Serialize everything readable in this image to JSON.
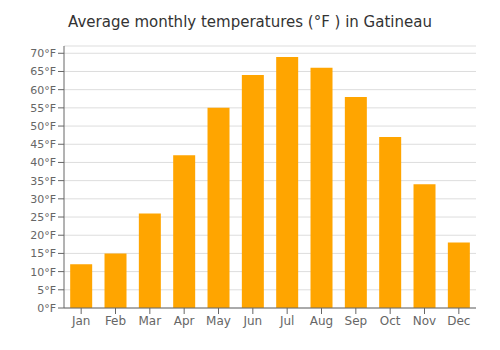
{
  "chart_data": {
    "type": "bar",
    "title": "Average monthly temperatures (°F ) in Gatineau",
    "categories": [
      "Jan",
      "Feb",
      "Mar",
      "Apr",
      "May",
      "Jun",
      "Jul",
      "Aug",
      "Sep",
      "Oct",
      "Nov",
      "Dec"
    ],
    "values": [
      12,
      15,
      26,
      42,
      55,
      64,
      69,
      66,
      58,
      47,
      34,
      18
    ],
    "color": "#FFA500",
    "ylim": [
      0,
      72
    ],
    "yticks": [
      {
        "value": 0,
        "label": "0°F"
      },
      {
        "value": 5,
        "label": "5°F"
      },
      {
        "value": 10,
        "label": "10°F"
      },
      {
        "value": 15,
        "label": "15°F"
      },
      {
        "value": 20,
        "label": "20°F"
      },
      {
        "value": 25,
        "label": "25°F"
      },
      {
        "value": 30,
        "label": "30°F"
      },
      {
        "value": 35,
        "label": "35°F"
      },
      {
        "value": 40,
        "label": "40°F"
      },
      {
        "value": 45,
        "label": "45°F"
      },
      {
        "value": 50,
        "label": "50°F"
      },
      {
        "value": 55,
        "label": "55°F"
      },
      {
        "value": 60,
        "label": "60°F"
      },
      {
        "value": 65,
        "label": "65°F"
      },
      {
        "value": 70,
        "label": "70°F"
      }
    ],
    "grid": true
  }
}
